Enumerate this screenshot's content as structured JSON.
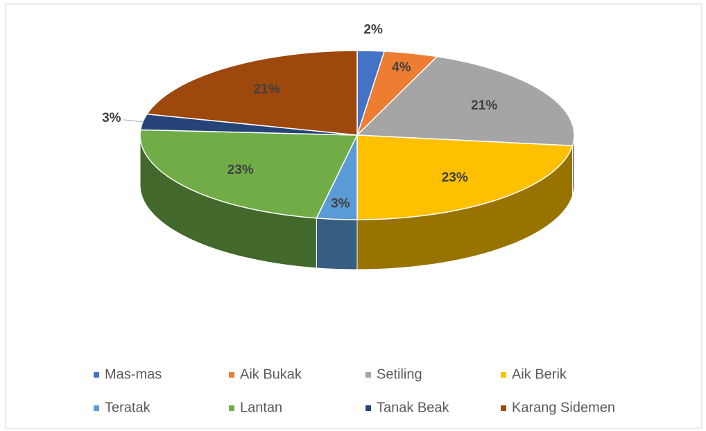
{
  "chart_data": {
    "type": "pie3d",
    "categories": [
      "Mas-mas",
      "Aik Bukak",
      "Setiling",
      "Aik Berik",
      "Teratak",
      "Lantan",
      "Tanak Beak",
      "Karang Sidemen"
    ],
    "values": [
      2,
      4,
      21,
      23,
      3,
      23,
      3,
      21
    ],
    "value_labels": [
      "2%",
      "4%",
      "21%",
      "23%",
      "3%",
      "23%",
      "3%",
      "21%"
    ],
    "colors": [
      "#4472c4",
      "#ed7d31",
      "#a5a5a5",
      "#ffc000",
      "#5b9bd5",
      "#70ad47",
      "#264478",
      "#9e480e"
    ],
    "legend": "bottom"
  }
}
